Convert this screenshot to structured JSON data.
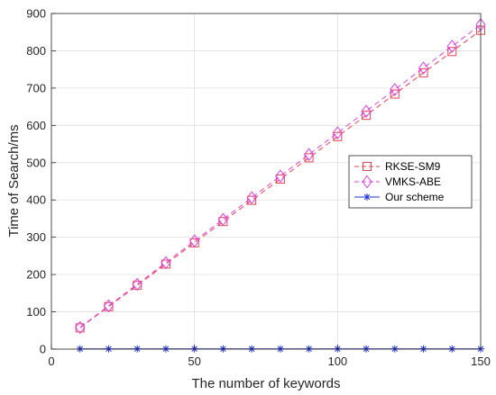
{
  "chart_data": {
    "type": "line",
    "title": "",
    "xlabel": "The number of keywords",
    "ylabel": "Time of Search/ms",
    "xlim": [
      0,
      150
    ],
    "ylim": [
      0,
      900
    ],
    "xticks": [
      0,
      50,
      100,
      150
    ],
    "yticks": [
      0,
      100,
      200,
      300,
      400,
      500,
      600,
      700,
      800,
      900
    ],
    "grid": true,
    "legend_position": "right",
    "x": [
      10,
      20,
      30,
      40,
      50,
      60,
      70,
      80,
      90,
      100,
      110,
      120,
      130,
      140,
      150
    ],
    "series": [
      {
        "name": "RKSE-SM9",
        "color": "#e8424f",
        "marker": "square",
        "line_style": "dashed",
        "values": [
          57,
          114,
          171,
          228,
          285,
          342,
          399,
          456,
          513,
          570,
          627,
          684,
          741,
          798,
          855
        ]
      },
      {
        "name": "VMKS-ABE",
        "color": "#e040e0",
        "marker": "diamond",
        "line_style": "dashed",
        "values": [
          58,
          116,
          174,
          232,
          290,
          348,
          406,
          464,
          522,
          580,
          638,
          696,
          754,
          812,
          870
        ]
      },
      {
        "name": "Our scheme",
        "color": "#2030d8",
        "marker": "asterisk",
        "line_style": "solid",
        "values": [
          0.5,
          0.5,
          0.5,
          0.5,
          0.5,
          0.5,
          0.5,
          0.5,
          0.5,
          0.5,
          0.5,
          0.5,
          0.5,
          0.5,
          0.5
        ]
      }
    ]
  }
}
